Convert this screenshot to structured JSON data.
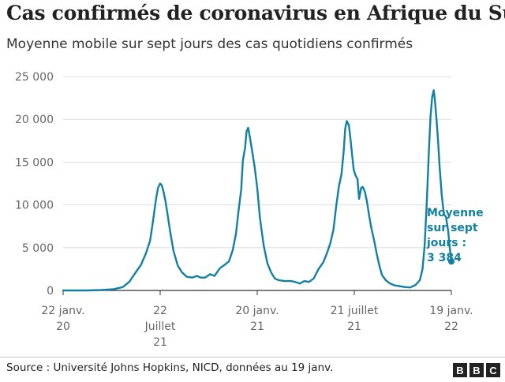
{
  "header": {
    "title": "Cas confirmés de coronavirus en Afrique du Sud",
    "subtitle": "Moyenne mobile sur sept jours des cas quotidiens confirmés"
  },
  "footer": {
    "source": "Source : Université Johns Hopkins, NICD, données au 19 janv.",
    "logo_letters": [
      "B",
      "B",
      "C"
    ]
  },
  "chart_data": {
    "type": "line",
    "title": "Cas confirmés de coronavirus en Afrique du Sud",
    "subtitle": "Moyenne mobile sur sept jours des cas quotidiens confirmés",
    "xlabel": "",
    "ylabel": "",
    "ylim": [
      0,
      25000
    ],
    "xlim": [
      "2020-01-22",
      "2022-01-19"
    ],
    "grid": true,
    "line_color": "#1380a1",
    "y_ticks": [
      {
        "value": 0,
        "label": "0"
      },
      {
        "value": 5000,
        "label": "5 000"
      },
      {
        "value": 10000,
        "label": "10 000"
      },
      {
        "value": 15000,
        "label": "15 000"
      },
      {
        "value": 20000,
        "label": "20 000"
      },
      {
        "value": 25000,
        "label": "25 000"
      }
    ],
    "x_ticks": [
      {
        "value": "2020-01-22",
        "lines": [
          "22 janv.",
          "20"
        ]
      },
      {
        "value": "2020-07-22",
        "lines": [
          "22",
          "Juillet",
          "21"
        ]
      },
      {
        "value": "2021-01-20",
        "lines": [
          "20 janv.",
          "21"
        ]
      },
      {
        "value": "2021-07-21",
        "lines": [
          "21 juillet",
          "21"
        ]
      },
      {
        "value": "2022-01-19",
        "lines": [
          "19 janv.",
          "22"
        ]
      }
    ],
    "series": [
      {
        "x": [
          "2020-01-22",
          "2020-03-05",
          "2020-04-01",
          "2020-04-26",
          "2020-05-13",
          "2020-05-25",
          "2020-06-06",
          "2020-06-16",
          "2020-06-25",
          "2020-07-03",
          "2020-07-09",
          "2020-07-14",
          "2020-07-18",
          "2020-07-22",
          "2020-07-25",
          "2020-07-28",
          "2020-08-01",
          "2020-08-05",
          "2020-08-10",
          "2020-08-16",
          "2020-08-24",
          "2020-09-01",
          "2020-09-10",
          "2020-09-20",
          "2020-09-29",
          "2020-10-06",
          "2020-10-14",
          "2020-10-24",
          "2020-11-01",
          "2020-11-11",
          "2020-11-20",
          "2020-11-28",
          "2020-12-05",
          "2020-12-11",
          "2020-12-16",
          "2020-12-21",
          "2020-12-24",
          "2020-12-28",
          "2020-12-31",
          "2021-01-03",
          "2021-01-06",
          "2021-01-10",
          "2021-01-15",
          "2021-01-20",
          "2021-01-25",
          "2021-02-01",
          "2021-02-08",
          "2021-02-15",
          "2021-02-22",
          "2021-03-01",
          "2021-03-12",
          "2021-03-24",
          "2021-04-01",
          "2021-04-10",
          "2021-04-18",
          "2021-04-27",
          "2021-05-06",
          "2021-05-15",
          "2021-05-24",
          "2021-05-31",
          "2021-06-06",
          "2021-06-12",
          "2021-06-17",
          "2021-06-22",
          "2021-06-27",
          "2021-07-01",
          "2021-07-04",
          "2021-07-07",
          "2021-07-11",
          "2021-07-14",
          "2021-07-17",
          "2021-07-20",
          "2021-07-23",
          "2021-07-27",
          "2021-07-30",
          "2021-08-03",
          "2021-08-06",
          "2021-08-10",
          "2021-08-14",
          "2021-08-18",
          "2021-08-22",
          "2021-08-27",
          "2021-09-01",
          "2021-09-06",
          "2021-09-11",
          "2021-09-18",
          "2021-09-25",
          "2021-10-04",
          "2021-10-14",
          "2021-10-24",
          "2021-11-03",
          "2021-11-13",
          "2021-11-21",
          "2021-11-26",
          "2021-11-30",
          "2021-12-04",
          "2021-12-08",
          "2021-12-11",
          "2021-12-14",
          "2021-12-17",
          "2021-12-19",
          "2021-12-22",
          "2021-12-25",
          "2021-12-28",
          "2022-01-01",
          "2022-01-05",
          "2022-01-09",
          "2022-01-13",
          "2022-01-16",
          "2022-01-19"
        ],
        "y": [
          0,
          0,
          50,
          150,
          400,
          1000,
          2100,
          3000,
          4300,
          5800,
          8300,
          10600,
          12000,
          12500,
          12300,
          11600,
          10400,
          8800,
          6800,
          4600,
          2900,
          2100,
          1600,
          1500,
          1700,
          1500,
          1500,
          1900,
          1700,
          2600,
          3000,
          3400,
          4700,
          6600,
          9300,
          11800,
          15200,
          16600,
          18600,
          19000,
          18000,
          16500,
          14500,
          12000,
          8500,
          5300,
          3200,
          2100,
          1400,
          1200,
          1100,
          1100,
          1000,
          800,
          1100,
          1000,
          1400,
          2500,
          3300,
          4400,
          5500,
          7100,
          9800,
          12100,
          13600,
          16200,
          18900,
          19800,
          19300,
          17600,
          15800,
          14100,
          13500,
          13000,
          10700,
          12000,
          12100,
          11500,
          10300,
          8700,
          7300,
          5900,
          4300,
          2900,
          1800,
          1200,
          850,
          600,
          500,
          400,
          350,
          650,
          1200,
          2500,
          5300,
          10400,
          16400,
          20300,
          22600,
          23400,
          22400,
          20100,
          17600,
          14500,
          11200,
          8900,
          8600,
          7000,
          5000,
          3384
        ]
      }
    ],
    "annotation": {
      "lines": [
        "Moyenne",
        "sur sept",
        "jours :",
        "3 384"
      ],
      "x": "2022-01-19",
      "y": 3384
    }
  }
}
